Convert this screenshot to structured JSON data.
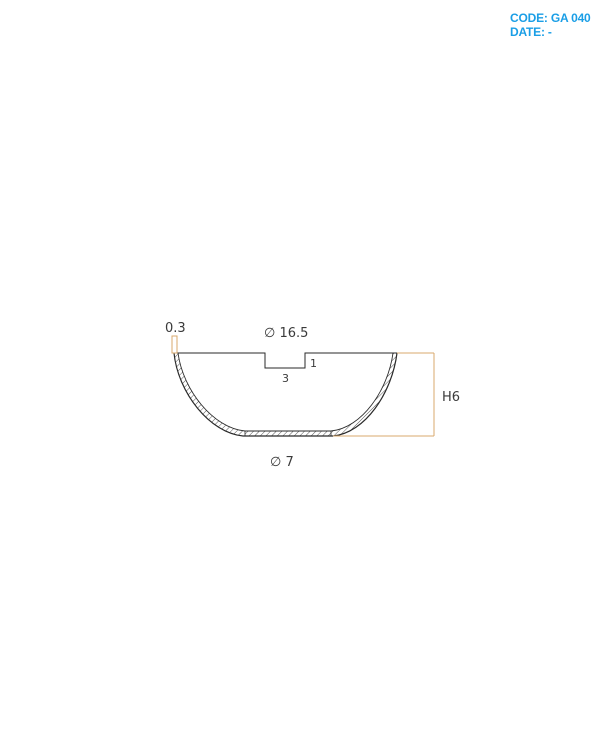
{
  "meta": {
    "code_label": "CODE:",
    "code_value": "GA 040",
    "date_label": "DATE:",
    "date_value": "-"
  },
  "dimensions": {
    "top_diameter": "∅ 16.5",
    "bottom_diameter": "∅ 7",
    "height": "H6",
    "thickness": "0.3",
    "notch_width": "3",
    "notch_depth": "1"
  },
  "colors": {
    "brand": "#1a9ee6",
    "outline": "#2a2a2a",
    "dimension_line": "#d9a86c"
  }
}
